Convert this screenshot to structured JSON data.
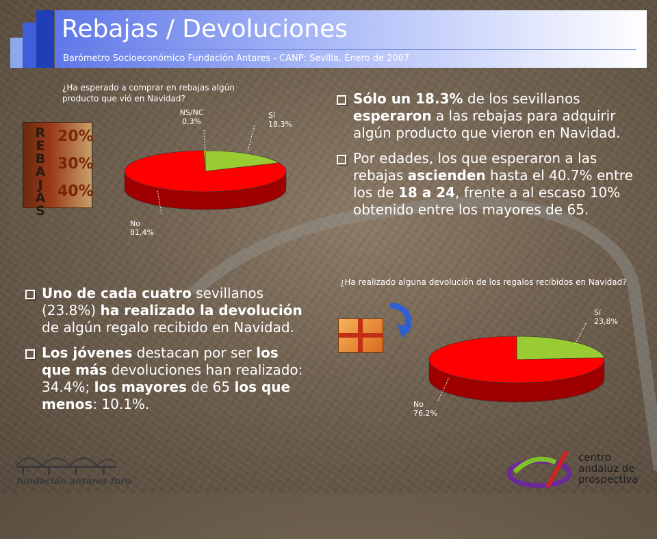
{
  "header": {
    "title": "Rebajas / Devoluciones",
    "subtitle": "Barómetro Socioeconómico Fundación Antares - CANP: Sevilla, Enero de 2007"
  },
  "colors": {
    "si": "#99CC33",
    "no": "#FF0000",
    "nsnc": "#FFCC00",
    "header_blue": "#5F77E8"
  },
  "section1": {
    "question": "¿Ha esperado a comprar en rebajas algún producto que vió en Navidad?",
    "bullets": [
      [
        {
          "t": "Sólo un 18.3%",
          "b": true
        },
        {
          "t": " de los sevillanos ",
          "b": false
        },
        {
          "t": "esperaron",
          "b": true
        },
        {
          "t": " a las rebajas para adquirir algún producto que vieron en Navidad.",
          "b": false
        }
      ],
      [
        {
          "t": "Por edades, los que esperaron a las rebajas ",
          "b": false
        },
        {
          "t": "ascienden",
          "b": true
        },
        {
          "t": " hasta el 40.7% entre los de ",
          "b": false
        },
        {
          "t": "18 a 24",
          "b": true
        },
        {
          "t": ", frente a al escaso 10% obtenido entre los mayores de 65.",
          "b": false
        }
      ]
    ],
    "picture": {
      "word": "REBAJAS",
      "labels": [
        "20%",
        "30%",
        "40%"
      ]
    }
  },
  "section2": {
    "question": "¿Ha realizado alguna devolución de los regalos recibidos en Navidad?",
    "bullets": [
      [
        {
          "t": "Uno de cada cuatro",
          "b": true
        },
        {
          "t": " sevillanos (23.8%) ",
          "b": false
        },
        {
          "t": "ha realizado la devolución",
          "b": true
        },
        {
          "t": " de algún regalo recibido en Navidad.",
          "b": false
        }
      ],
      [
        {
          "t": "Los jóvenes",
          "b": true
        },
        {
          "t": " destacan por ser ",
          "b": false
        },
        {
          "t": "los que más",
          "b": true
        },
        {
          "t": " devoluciones han realizado: 34.4%; ",
          "b": false
        },
        {
          "t": "los mayores",
          "b": true
        },
        {
          "t": " de 65 ",
          "b": false
        },
        {
          "t": "los que menos",
          "b": true
        },
        {
          "t": ": 10.1%.",
          "b": false
        }
      ]
    ]
  },
  "chart_data": [
    {
      "type": "pie",
      "title": "",
      "slices": [
        {
          "label": "Sí",
          "value": 18.3,
          "label_text": "18,3%",
          "color": "#99CC33"
        },
        {
          "label": "No",
          "value": 81.4,
          "label_text": "81,4%",
          "color": "#FF0000"
        },
        {
          "label": "NS/NC",
          "value": 0.3,
          "label_text": "0,3%",
          "color": "#FFCC00"
        }
      ]
    },
    {
      "type": "pie",
      "title": "",
      "slices": [
        {
          "label": "Sí",
          "value": 23.8,
          "label_text": "23,8%",
          "color": "#99CC33"
        },
        {
          "label": "No",
          "value": 76.2,
          "label_text": "76,2%",
          "color": "#FF0000"
        }
      ]
    }
  ],
  "footer": {
    "left_logo": "fundación antares foro",
    "right_logo": [
      "centro",
      "andaluz de",
      "prospectiva"
    ]
  }
}
